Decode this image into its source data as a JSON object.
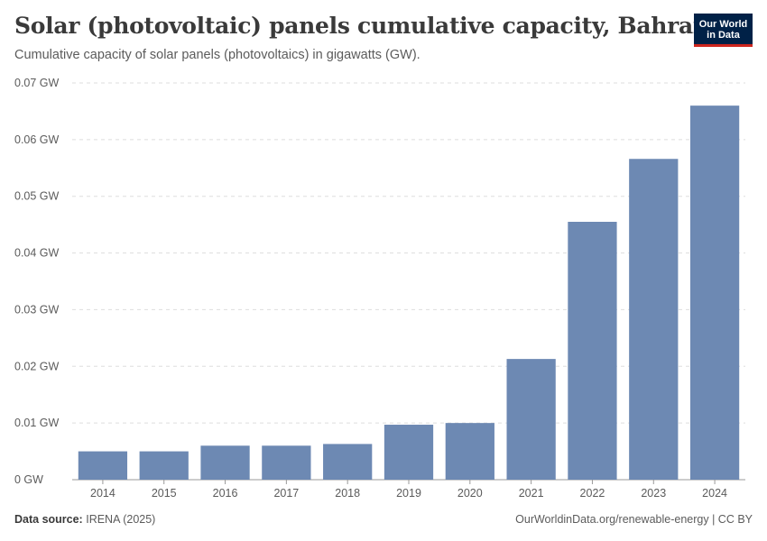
{
  "header": {
    "title": "Solar (photovoltaic) panels cumulative capacity, Bahrain",
    "subtitle": "Cumulative capacity of solar panels (photovoltaics) in gigawatts (GW).",
    "logo_line1": "Our World",
    "logo_line2": "in Data"
  },
  "footer": {
    "source_label": "Data source:",
    "source_value": "IRENA (2025)",
    "link": "OurWorldinData.org/renewable-energy | CC BY"
  },
  "colors": {
    "bar": "#6d89b3",
    "grid": "#dddddd",
    "axis": "#999999"
  },
  "chart_data": {
    "type": "bar",
    "title": "Solar (photovoltaic) panels cumulative capacity, Bahrain",
    "xlabel": "",
    "ylabel": "",
    "categories": [
      "2014",
      "2015",
      "2016",
      "2017",
      "2018",
      "2019",
      "2020",
      "2021",
      "2022",
      "2023",
      "2024"
    ],
    "values": [
      0.005,
      0.005,
      0.006,
      0.006,
      0.0063,
      0.0097,
      0.01,
      0.0213,
      0.0455,
      0.0566,
      0.066
    ],
    "ylim": [
      0,
      0.07
    ],
    "yticks": [
      0,
      0.01,
      0.02,
      0.03,
      0.04,
      0.05,
      0.06,
      0.07
    ],
    "ytick_labels": [
      "0 GW",
      "0.01 GW",
      "0.02 GW",
      "0.03 GW",
      "0.04 GW",
      "0.05 GW",
      "0.06 GW",
      "0.07 GW"
    ],
    "grid": true
  }
}
